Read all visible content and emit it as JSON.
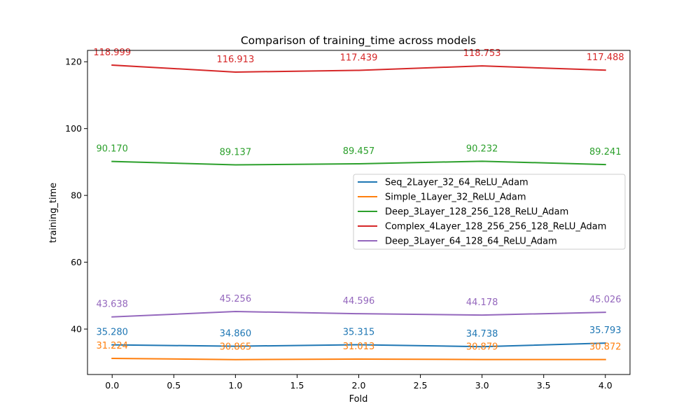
{
  "chart_data": {
    "type": "line",
    "title": "Comparison of training_time across models",
    "xlabel": "Fold",
    "ylabel": "training_time",
    "x": [
      0,
      1,
      2,
      3,
      4
    ],
    "xlim": [
      -0.2,
      4.2
    ],
    "ylim": [
      26.4,
      123.4
    ],
    "xticks": [
      0.0,
      0.5,
      1.0,
      1.5,
      2.0,
      2.5,
      3.0,
      3.5,
      4.0
    ],
    "xtick_labels": [
      "0.0",
      "0.5",
      "1.0",
      "1.5",
      "2.0",
      "2.5",
      "3.0",
      "3.5",
      "4.0"
    ],
    "yticks": [
      40,
      60,
      80,
      100,
      120
    ],
    "ytick_labels": [
      "40",
      "60",
      "80",
      "100",
      "120"
    ],
    "grid": false,
    "legend_position": "center-right",
    "series": [
      {
        "name": "Seq_2Layer_32_64_ReLU_Adam",
        "color": "#1f77b4",
        "values": [
          35.28,
          34.86,
          35.315,
          34.738,
          35.793
        ],
        "labels": [
          "35.280",
          "34.860",
          "35.315",
          "34.738",
          "35.793"
        ]
      },
      {
        "name": "Simple_1Layer_32_ReLU_Adam",
        "color": "#ff7f0e",
        "values": [
          31.224,
          30.865,
          31.013,
          30.879,
          30.872
        ],
        "labels": [
          "31.224",
          "30.865",
          "31.013",
          "30.879",
          "30.872"
        ]
      },
      {
        "name": "Deep_3Layer_128_256_128_ReLU_Adam",
        "color": "#2ca02c",
        "values": [
          90.17,
          89.137,
          89.457,
          90.232,
          89.241
        ],
        "labels": [
          "90.170",
          "89.137",
          "89.457",
          "90.232",
          "89.241"
        ]
      },
      {
        "name": "Complex_4Layer_128_256_256_128_ReLU_Adam",
        "color": "#d62728",
        "values": [
          118.999,
          116.913,
          117.439,
          118.753,
          117.488
        ],
        "labels": [
          "118.999",
          "116.913",
          "117.439",
          "118.753",
          "117.488"
        ]
      },
      {
        "name": "Deep_3Layer_64_128_64_ReLU_Adam",
        "color": "#9467bd",
        "values": [
          43.638,
          45.256,
          44.596,
          44.178,
          45.026
        ],
        "labels": [
          "43.638",
          "45.256",
          "44.596",
          "44.178",
          "45.026"
        ]
      }
    ]
  }
}
